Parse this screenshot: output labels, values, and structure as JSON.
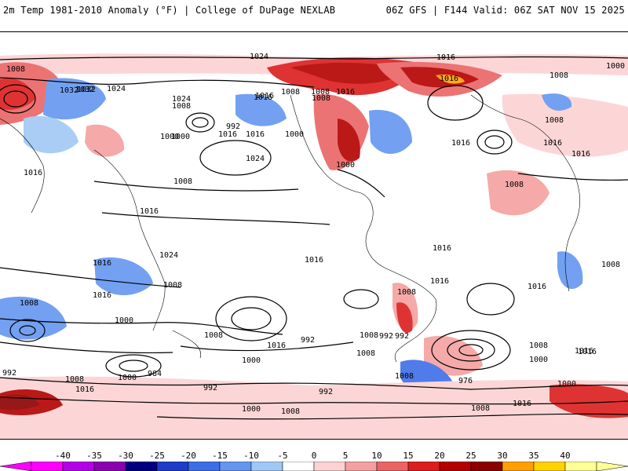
{
  "header": {
    "left_title": "2m Temp 1981-2010 Anomaly (°F) | College of DuPage NEXLAB",
    "right_title": "06Z GFS | F144 Valid: 06Z SAT NOV 15 2025"
  },
  "map": {
    "isobar_labels": [
      "1024",
      "1016",
      "1008",
      "1000",
      "1032",
      "1032",
      "1024",
      "1008",
      "1016",
      "1016",
      "1008",
      "1008",
      "1016",
      "1008",
      "1016",
      "1024",
      "1032",
      "1008",
      "1000",
      "1000",
      "1016",
      "1016",
      "1024",
      "1000",
      "1008",
      "1016",
      "1016",
      "1016",
      "1000",
      "1016",
      "1008",
      "1008",
      "1016",
      "1024",
      "1016",
      "1016",
      "1016",
      "1008",
      "1008",
      "1016",
      "1008",
      "1016",
      "1016",
      "1008",
      "992",
      "1000",
      "1008",
      "1008",
      "1016",
      "992",
      "1008",
      "992",
      "1000",
      "1008",
      "1000",
      "984",
      "992",
      "992",
      "976",
      "1008",
      "992",
      "1000",
      "1008",
      "1016",
      "1000",
      "1016",
      "1000",
      "1008",
      "1008",
      "1016",
      "1016",
      "992"
    ]
  },
  "legend": {
    "ticks": [
      "-40",
      "-35",
      "-30",
      "-25",
      "-20",
      "-15",
      "-10",
      "-5",
      "0",
      "5",
      "10",
      "15",
      "20",
      "25",
      "30",
      "35",
      "40"
    ],
    "colors": [
      "#ff00ff",
      "#b400e6",
      "#8c00b4",
      "#000080",
      "#1e3cc8",
      "#3c6ee6",
      "#6496f0",
      "#a0c8f5",
      "#ffffff",
      "#fcd2d2",
      "#f5a0a0",
      "#eb6464",
      "#dc1e1e",
      "#b40000",
      "#8c0000",
      "#ffa000",
      "#ffd200",
      "#ffff96"
    ]
  }
}
